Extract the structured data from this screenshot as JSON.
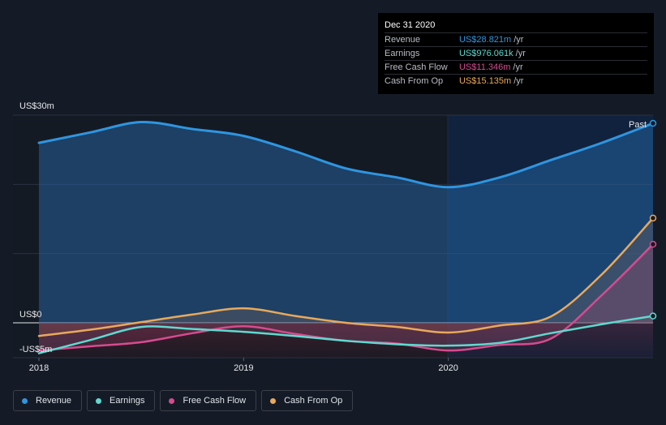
{
  "tooltip": {
    "date": "Dec 31 2020",
    "unit": "/yr",
    "rows": [
      {
        "label": "Revenue",
        "value": "US$28.821m",
        "color": "#2f95e0"
      },
      {
        "label": "Earnings",
        "value": "US$976.061k",
        "color": "#5fd9cf"
      },
      {
        "label": "Free Cash Flow",
        "value": "US$11.346m",
        "color": "#d64b8f"
      },
      {
        "label": "Cash From Op",
        "value": "US$15.135m",
        "color": "#e8a95d"
      }
    ]
  },
  "legend": [
    {
      "label": "Revenue",
      "color": "#2f95e0"
    },
    {
      "label": "Earnings",
      "color": "#5fd9cf"
    },
    {
      "label": "Free Cash Flow",
      "color": "#d64b8f"
    },
    {
      "label": "Cash From Op",
      "color": "#e8a95d"
    }
  ],
  "chart_data": {
    "type": "line",
    "ylabels": [
      "US$30m",
      "US$0",
      "-US$5m"
    ],
    "xticks": [
      {
        "label": "2018",
        "x": 2018.0
      },
      {
        "label": "2019",
        "x": 2019.0
      },
      {
        "label": "2020",
        "x": 2020.0
      }
    ],
    "ylim": [
      -5,
      30
    ],
    "xlim": [
      2018.0,
      2021.0
    ],
    "past_label": "Past",
    "series": [
      {
        "name": "Revenue",
        "color": "#2f95e0",
        "points": [
          [
            2018.0,
            26.0
          ],
          [
            2018.25,
            27.5
          ],
          [
            2018.5,
            29.0
          ],
          [
            2018.75,
            28.0
          ],
          [
            2019.0,
            27.0
          ],
          [
            2019.25,
            24.8
          ],
          [
            2019.5,
            22.3
          ],
          [
            2019.75,
            21.0
          ],
          [
            2020.0,
            19.6
          ],
          [
            2020.25,
            21.0
          ],
          [
            2020.5,
            23.5
          ],
          [
            2020.75,
            26.0
          ],
          [
            2021.0,
            28.821
          ]
        ]
      },
      {
        "name": "Earnings",
        "color": "#5fd9cf",
        "points": [
          [
            2018.0,
            -4.4
          ],
          [
            2018.25,
            -2.5
          ],
          [
            2018.5,
            -0.6
          ],
          [
            2018.75,
            -0.9
          ],
          [
            2019.0,
            -1.3
          ],
          [
            2019.25,
            -1.9
          ],
          [
            2019.5,
            -2.6
          ],
          [
            2019.75,
            -3.1
          ],
          [
            2020.0,
            -3.3
          ],
          [
            2020.25,
            -2.9
          ],
          [
            2020.5,
            -1.5
          ],
          [
            2020.75,
            -0.2
          ],
          [
            2021.0,
            0.976
          ]
        ]
      },
      {
        "name": "Free Cash Flow",
        "color": "#d64b8f",
        "points": [
          [
            2018.0,
            -4.0
          ],
          [
            2018.25,
            -3.4
          ],
          [
            2018.5,
            -2.8
          ],
          [
            2018.75,
            -1.5
          ],
          [
            2019.0,
            -0.5
          ],
          [
            2019.25,
            -1.6
          ],
          [
            2019.5,
            -2.6
          ],
          [
            2019.75,
            -3.0
          ],
          [
            2020.0,
            -4.0
          ],
          [
            2020.25,
            -3.2
          ],
          [
            2020.5,
            -2.3
          ],
          [
            2020.75,
            4.0
          ],
          [
            2021.0,
            11.346
          ]
        ]
      },
      {
        "name": "Cash From Op",
        "color": "#e8a95d",
        "points": [
          [
            2018.0,
            -1.9
          ],
          [
            2018.25,
            -1.0
          ],
          [
            2018.5,
            0.1
          ],
          [
            2018.75,
            1.2
          ],
          [
            2019.0,
            2.1
          ],
          [
            2019.25,
            1.0
          ],
          [
            2019.5,
            0.0
          ],
          [
            2019.75,
            -0.6
          ],
          [
            2020.0,
            -1.4
          ],
          [
            2020.25,
            -0.4
          ],
          [
            2020.5,
            0.9
          ],
          [
            2020.75,
            7.0
          ],
          [
            2021.0,
            15.135
          ]
        ]
      }
    ]
  }
}
